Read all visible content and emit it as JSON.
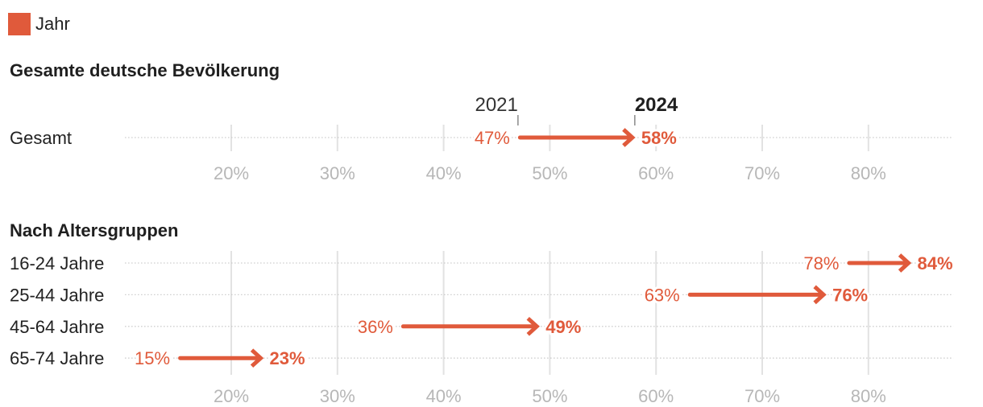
{
  "legend": {
    "label": "Jahr",
    "position": "top-left"
  },
  "colors": {
    "accent": "#E05A3B"
  },
  "chart_data": [
    {
      "type": "scatter",
      "title": "Gesamte deutsche Bevölkerung",
      "categories": [
        "Gesamt"
      ],
      "series": [
        {
          "name": "2021",
          "values": [
            47
          ],
          "labels": [
            "47%"
          ]
        },
        {
          "name": "2024",
          "values": [
            58
          ],
          "labels": [
            "58%"
          ]
        }
      ],
      "x_ticks": [
        20,
        30,
        40,
        50,
        60,
        70,
        80
      ],
      "x_tick_labels": [
        "20%",
        "30%",
        "40%",
        "50%",
        "60%",
        "70%",
        "80%"
      ],
      "xlim": [
        10,
        88
      ],
      "grid": true
    },
    {
      "type": "scatter",
      "title": "Nach Altersgruppen",
      "categories": [
        "16-24 Jahre",
        "25-44 Jahre",
        "45-64 Jahre",
        "65-74 Jahre"
      ],
      "series": [
        {
          "values": [
            78,
            63,
            36,
            15
          ],
          "labels": [
            "78%",
            "63%",
            "36%",
            "15%"
          ]
        },
        {
          "values": [
            84,
            76,
            49,
            23
          ],
          "labels": [
            "84%",
            "76%",
            "49%",
            "23%"
          ]
        }
      ],
      "x_ticks": [
        20,
        30,
        40,
        50,
        60,
        70,
        80
      ],
      "x_tick_labels": [
        "20%",
        "30%",
        "40%",
        "50%",
        "60%",
        "70%",
        "80%"
      ],
      "xlim": [
        10,
        88
      ],
      "grid": true
    }
  ]
}
